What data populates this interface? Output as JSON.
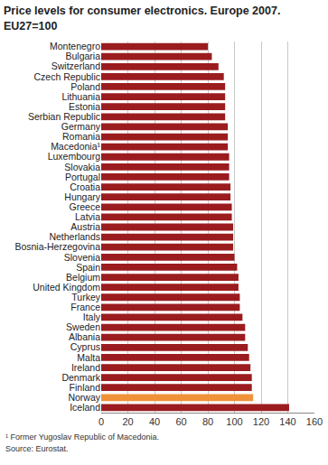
{
  "chart_data": {
    "type": "bar",
    "orientation": "horizontal",
    "title": [
      "Price levels for consumer electronics. Europe 2007.",
      "EU27=100"
    ],
    "categories": [
      "Montenegro",
      "Bulgaria",
      "Switzerland",
      "Czech Republic",
      "Poland",
      "Lithuania",
      "Estonia",
      "Serbian Republic",
      "Germany",
      "Romania",
      "Macedonia¹",
      "Luxembourg",
      "Slovakia",
      "Portugal",
      "Croatia",
      "Hungary",
      "Greece",
      "Latvia",
      "Austria",
      "Netherlands",
      "Bosnia-Herzegovina",
      "Slovenia",
      "Spain",
      "Belgium",
      "United Kingdom",
      "Turkey",
      "France",
      "Italy",
      "Sweden",
      "Albania",
      "Cyprus",
      "Malta",
      "Ireland",
      "Denmark",
      "Finland",
      "Norway",
      "Iceland"
    ],
    "values": [
      80,
      83,
      88,
      92,
      93,
      93,
      93,
      93,
      95,
      95,
      95,
      96,
      96,
      96,
      97,
      97,
      98,
      98,
      99,
      99,
      99,
      100,
      102,
      103,
      103,
      104,
      104,
      106,
      108,
      108,
      110,
      111,
      112,
      113,
      113,
      114,
      141
    ],
    "colors": [
      "#9b1c1f",
      "#9b1c1f",
      "#9b1c1f",
      "#9b1c1f",
      "#9b1c1f",
      "#9b1c1f",
      "#9b1c1f",
      "#9b1c1f",
      "#9b1c1f",
      "#9b1c1f",
      "#9b1c1f",
      "#9b1c1f",
      "#9b1c1f",
      "#9b1c1f",
      "#9b1c1f",
      "#9b1c1f",
      "#9b1c1f",
      "#9b1c1f",
      "#9b1c1f",
      "#9b1c1f",
      "#9b1c1f",
      "#9b1c1f",
      "#9b1c1f",
      "#9b1c1f",
      "#9b1c1f",
      "#9b1c1f",
      "#9b1c1f",
      "#9b1c1f",
      "#9b1c1f",
      "#9b1c1f",
      "#9b1c1f",
      "#9b1c1f",
      "#9b1c1f",
      "#9b1c1f",
      "#9b1c1f",
      "#f0923a",
      "#9b1c1f"
    ],
    "xlim": [
      0,
      160
    ],
    "xticks": [
      0,
      20,
      40,
      60,
      80,
      100,
      120,
      140,
      160
    ],
    "grid": true,
    "annotations": [
      "¹ Former Yugoslav Republic of Macedonia.",
      "Source: Eurostat."
    ]
  }
}
